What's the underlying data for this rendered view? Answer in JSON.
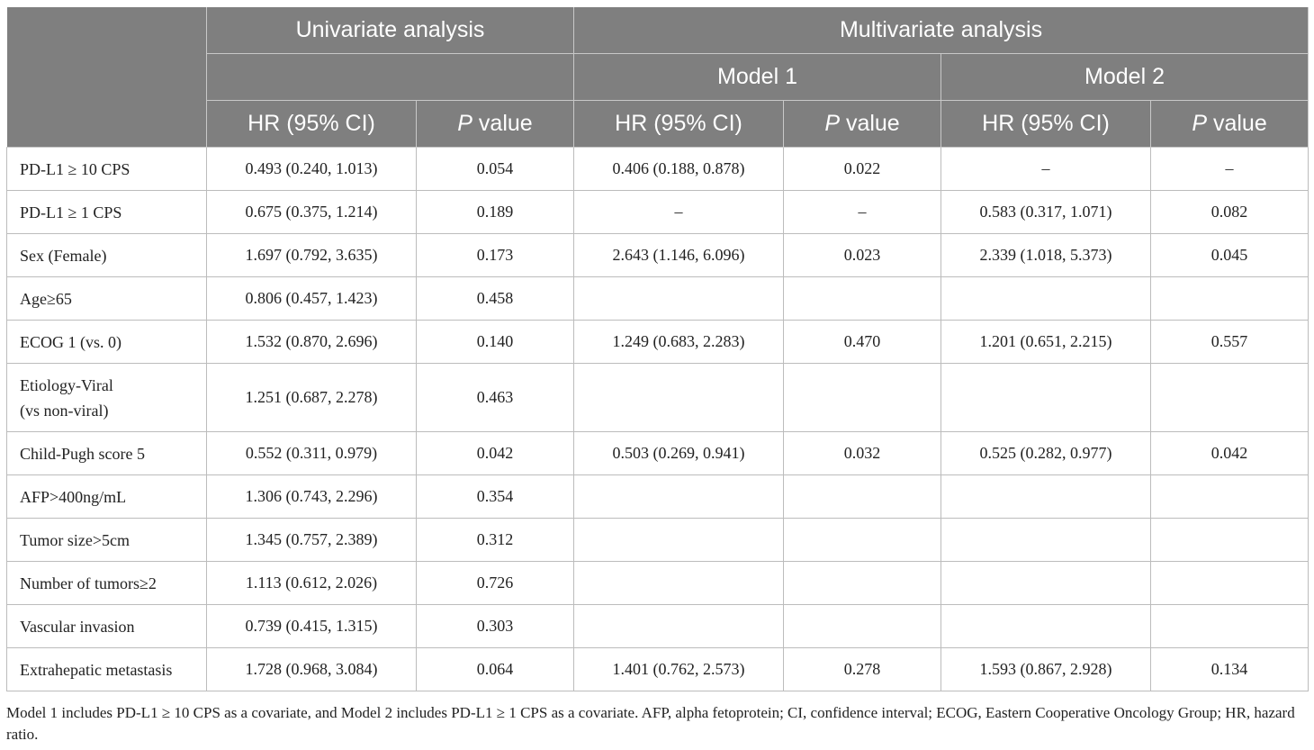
{
  "header": {
    "univariate": "Univariate analysis",
    "multivariate": "Multivariate analysis",
    "model1": "Model 1",
    "model2": "Model 2",
    "hr_label": "HR (95% CI)",
    "p_italic": "P",
    "p_rest": " value"
  },
  "rows": [
    {
      "variable": "PD-L1 ≥ 10 CPS",
      "uni_hr": "0.493 (0.240, 1.013)",
      "uni_p": "0.054",
      "m1_hr": "0.406 (0.188, 0.878)",
      "m1_p": "0.022",
      "m2_hr": "–",
      "m2_p": "–"
    },
    {
      "variable": "PD-L1 ≥ 1 CPS",
      "uni_hr": "0.675 (0.375, 1.214)",
      "uni_p": "0.189",
      "m1_hr": "–",
      "m1_p": "–",
      "m2_hr": "0.583 (0.317, 1.071)",
      "m2_p": "0.082"
    },
    {
      "variable": "Sex (Female)",
      "uni_hr": "1.697 (0.792, 3.635)",
      "uni_p": "0.173",
      "m1_hr": "2.643 (1.146, 6.096)",
      "m1_p": "0.023",
      "m2_hr": "2.339 (1.018, 5.373)",
      "m2_p": "0.045"
    },
    {
      "variable": "Age≥65",
      "uni_hr": "0.806 (0.457, 1.423)",
      "uni_p": "0.458",
      "m1_hr": "",
      "m1_p": "",
      "m2_hr": "",
      "m2_p": ""
    },
    {
      "variable": "ECOG 1 (vs. 0)",
      "uni_hr": "1.532 (0.870, 2.696)",
      "uni_p": "0.140",
      "m1_hr": "1.249 (0.683, 2.283)",
      "m1_p": "0.470",
      "m2_hr": "1.201 (0.651, 2.215)",
      "m2_p": "0.557"
    },
    {
      "variable": "Etiology-Viral",
      "variable_line2": "(vs non-viral)",
      "uni_hr": "1.251 (0.687, 2.278)",
      "uni_p": "0.463",
      "m1_hr": "",
      "m1_p": "",
      "m2_hr": "",
      "m2_p": ""
    },
    {
      "variable": "Child-Pugh score 5",
      "uni_hr": "0.552 (0.311, 0.979)",
      "uni_p": "0.042",
      "m1_hr": "0.503 (0.269, 0.941)",
      "m1_p": "0.032",
      "m2_hr": "0.525 (0.282, 0.977)",
      "m2_p": "0.042"
    },
    {
      "variable": "AFP>400ng/mL",
      "uni_hr": "1.306 (0.743, 2.296)",
      "uni_p": "0.354",
      "m1_hr": "",
      "m1_p": "",
      "m2_hr": "",
      "m2_p": ""
    },
    {
      "variable": "Tumor size>5cm",
      "uni_hr": "1.345 (0.757, 2.389)",
      "uni_p": "0.312",
      "m1_hr": "",
      "m1_p": "",
      "m2_hr": "",
      "m2_p": ""
    },
    {
      "variable": "Number of tumors≥2",
      "uni_hr": "1.113 (0.612, 2.026)",
      "uni_p": "0.726",
      "m1_hr": "",
      "m1_p": "",
      "m2_hr": "",
      "m2_p": ""
    },
    {
      "variable": "Vascular invasion",
      "uni_hr": "0.739 (0.415, 1.315)",
      "uni_p": "0.303",
      "m1_hr": "",
      "m1_p": "",
      "m2_hr": "",
      "m2_p": ""
    },
    {
      "variable": "Extrahepatic metastasis",
      "uni_hr": "1.728 (0.968, 3.084)",
      "uni_p": "0.064",
      "m1_hr": "1.401 (0.762, 2.573)",
      "m1_p": "0.278",
      "m2_hr": "1.593 (0.867, 2.928)",
      "m2_p": "0.134"
    }
  ],
  "footnote": "Model 1 includes PD-L1 ≥ 10 CPS as a covariate, and Model 2 includes PD-L1 ≥ 1 CPS as a covariate. AFP, alpha fetoprotein; CI, confidence interval; ECOG, Eastern Cooperative Oncology Group; HR, hazard ratio."
}
